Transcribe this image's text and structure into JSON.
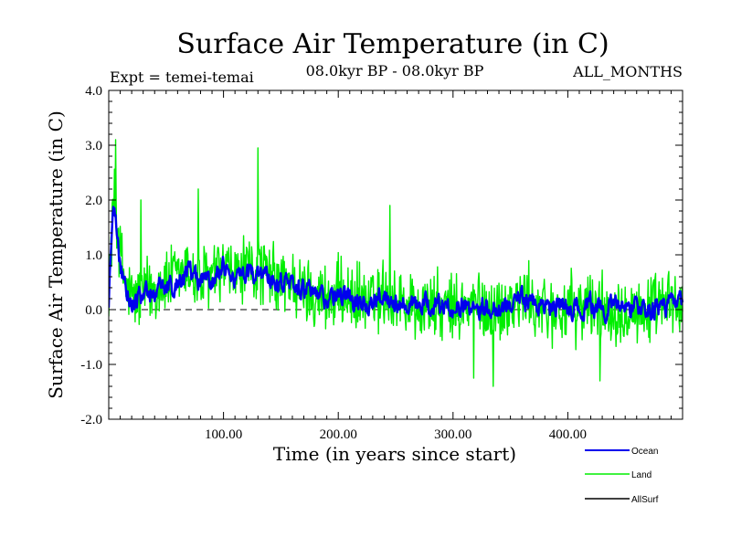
{
  "chart_data": {
    "type": "line",
    "title": "Surface Air Temperature (in C)",
    "subtitle_left": "Expt = temei-temai",
    "subtitle_center": "08.0kyr BP - 08.0kyr BP",
    "subtitle_right": "ALL_MONTHS",
    "xlabel": "Time (in years since start)",
    "ylabel": "Surface Air Temperature (in C)",
    "xlim": [
      0,
      500
    ],
    "ylim": [
      -2.0,
      4.0
    ],
    "x_ticks": [
      100,
      200,
      300,
      400
    ],
    "x_tick_labels": [
      "100.00",
      "200.00",
      "300.00",
      "400.00"
    ],
    "y_ticks": [
      -2.0,
      -1.0,
      0.0,
      1.0,
      2.0,
      3.0,
      4.0
    ],
    "y_tick_labels": [
      "-2.0",
      "-1.0",
      "0.0",
      "1.0",
      "2.0",
      "3.0",
      "4.0"
    ],
    "zero_line": "dashed",
    "legend_position": "bottom-right",
    "series": [
      {
        "name": "Land",
        "color": "#00ee00",
        "anchors_x": [
          0,
          2,
          4,
          6,
          8,
          10,
          15,
          20,
          30,
          40,
          50,
          60,
          70,
          80,
          90,
          100,
          110,
          120,
          130,
          140,
          150,
          160,
          170,
          180,
          190,
          200,
          210,
          220,
          230,
          240,
          250,
          260,
          270,
          280,
          290,
          300,
          310,
          320,
          330,
          340,
          350,
          360,
          370,
          380,
          390,
          400,
          410,
          420,
          430,
          440,
          450,
          460,
          470,
          480,
          490,
          500
        ],
        "anchors_y": [
          0.2,
          1.2,
          2.0,
          1.9,
          1.5,
          1.0,
          0.4,
          0.2,
          0.3,
          0.4,
          0.5,
          0.6,
          0.7,
          0.5,
          0.6,
          0.7,
          0.6,
          0.7,
          0.75,
          0.6,
          0.5,
          0.5,
          0.3,
          0.3,
          0.2,
          0.3,
          0.2,
          0.2,
          0.1,
          0.3,
          0.2,
          0.1,
          0.0,
          0.1,
          0.0,
          0.0,
          0.0,
          0.1,
          0.0,
          0.0,
          0.1,
          0.2,
          0.1,
          0.0,
          0.0,
          0.0,
          0.0,
          0.1,
          0.0,
          0.0,
          0.1,
          0.0,
          0.0,
          0.0,
          0.1,
          0.1
        ],
        "noise_amplitude": 0.55,
        "peaks": [
          [
            6,
            3.1
          ],
          [
            130,
            2.95
          ],
          [
            28,
            2.0
          ],
          [
            78,
            2.2
          ],
          [
            245,
            1.9
          ],
          [
            335,
            -1.4
          ],
          [
            318,
            -1.25
          ],
          [
            428,
            -1.3
          ]
        ]
      },
      {
        "name": "Ocean",
        "color": "#0000ee",
        "anchors_x": [
          0,
          2,
          4,
          6,
          8,
          10,
          15,
          20,
          30,
          40,
          50,
          60,
          70,
          80,
          90,
          100,
          110,
          120,
          130,
          140,
          150,
          160,
          170,
          180,
          190,
          200,
          210,
          220,
          230,
          240,
          250,
          260,
          270,
          280,
          290,
          300,
          310,
          320,
          330,
          340,
          350,
          360,
          370,
          380,
          390,
          400,
          410,
          420,
          430,
          440,
          450,
          460,
          470,
          480,
          490,
          500
        ],
        "anchors_y": [
          0.0,
          1.2,
          1.75,
          1.6,
          1.2,
          0.8,
          0.4,
          0.15,
          0.25,
          0.35,
          0.4,
          0.55,
          0.7,
          0.55,
          0.5,
          0.75,
          0.6,
          0.55,
          0.7,
          0.6,
          0.55,
          0.45,
          0.35,
          0.3,
          0.2,
          0.25,
          0.2,
          0.2,
          0.1,
          0.3,
          0.2,
          0.15,
          0.05,
          0.1,
          0.05,
          0.05,
          0.05,
          0.1,
          0.05,
          0.05,
          0.1,
          0.25,
          0.1,
          0.05,
          0.05,
          0.05,
          0.05,
          0.1,
          0.0,
          0.05,
          0.1,
          0.05,
          0.0,
          0.05,
          0.1,
          0.1
        ],
        "noise_amplitude": 0.15,
        "peaks": [
          [
            5,
            1.85
          ]
        ]
      },
      {
        "name": "AllSurf",
        "color": "#000000",
        "anchors_x": [],
        "anchors_y": [],
        "noise_amplitude": 0,
        "peaks": []
      }
    ]
  }
}
